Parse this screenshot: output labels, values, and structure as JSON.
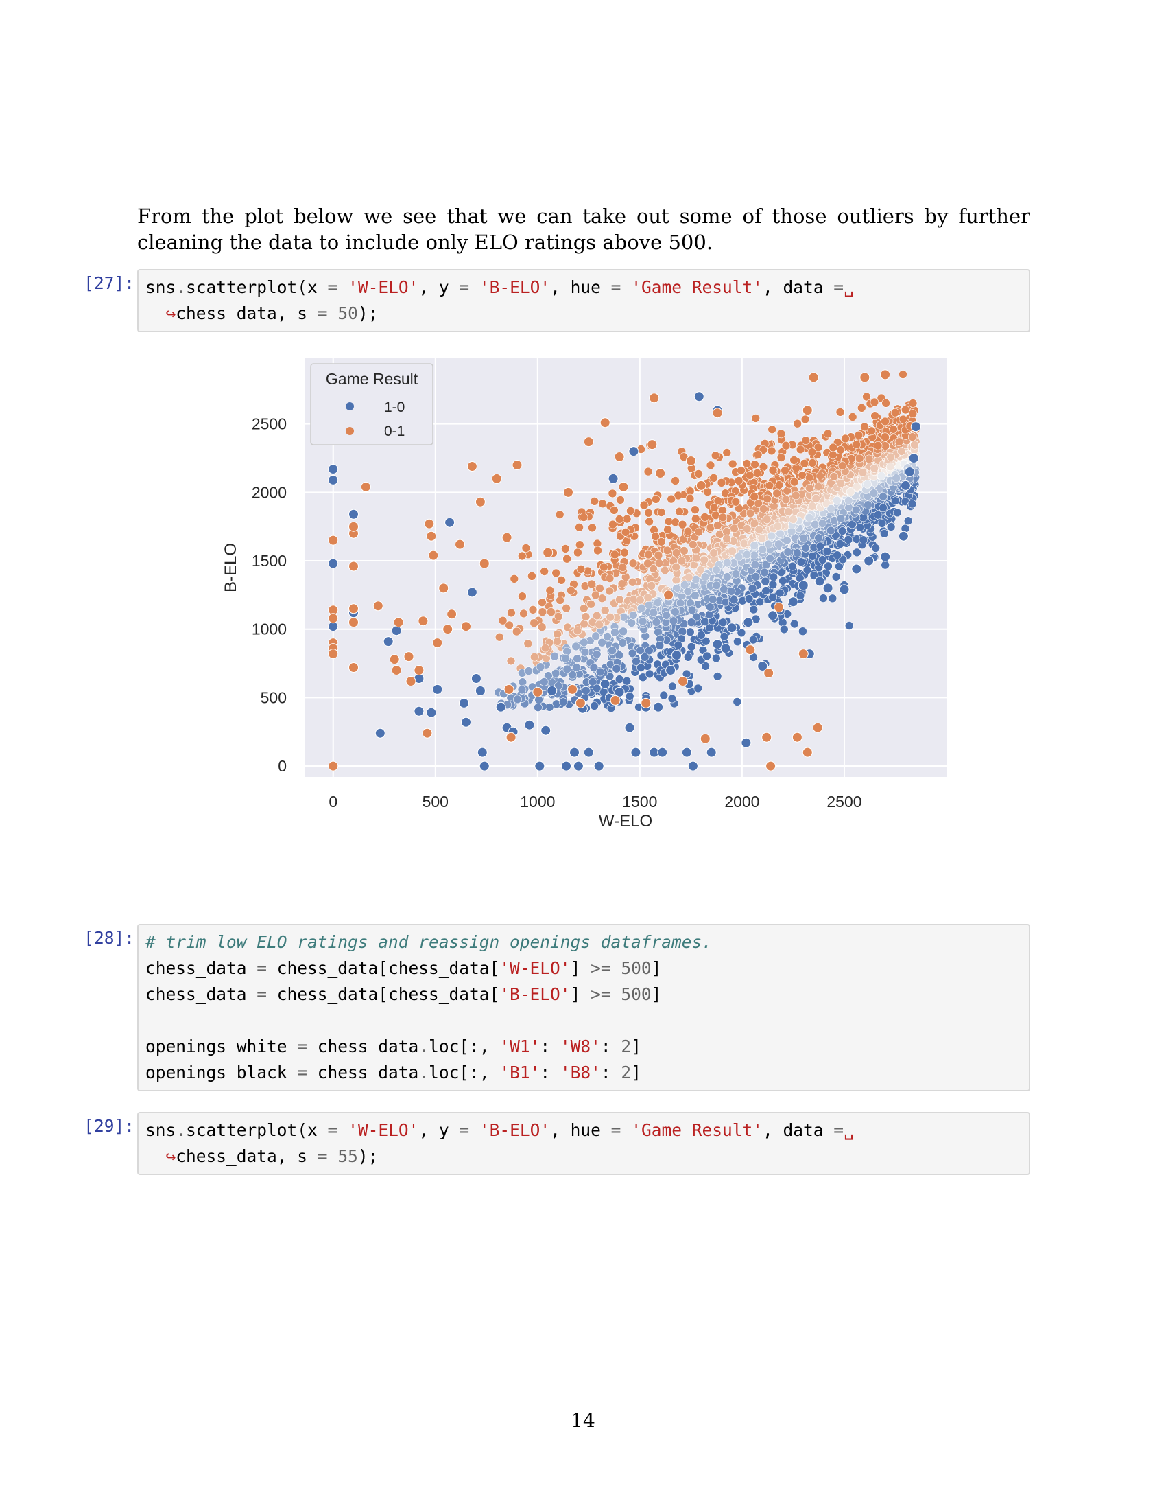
{
  "paragraph": "From the plot below we see that we can take out some of those outliers by further cleaning the data to include only ELO ratings above 500.",
  "cells": [
    {
      "prompt": "[27]:"
    },
    {
      "prompt": "[28]:"
    },
    {
      "prompt": "[29]:"
    }
  ],
  "code": {
    "c27_l1": {
      "t1": "sns",
      "t2": ".",
      "t3": "scatterplot(x ",
      "t4": "=",
      "t5": " ",
      "t6": "'W-ELO'",
      "t7": ", y ",
      "t8": "=",
      "t9": " ",
      "t10": "'B-ELO'",
      "t11": ", hue ",
      "t12": "=",
      "t13": " ",
      "t14": "'Game Result'",
      "t15": ", data ",
      "t16": "=",
      "t17": "␣"
    },
    "c27_l2": {
      "t1": "↪",
      "t2": "chess_data, s ",
      "t3": "=",
      "t4": " ",
      "t5": "50",
      "t6": ");"
    },
    "c28": {
      "comment": "# trim low ELO ratings and reassign openings dataframes.",
      "l2a": "chess_data ",
      "l2b": "=",
      "l2c": " chess_data[chess_data[",
      "l2d": "'W-ELO'",
      "l2e": "] ",
      "l2f": ">=",
      "l2g": " ",
      "l2h": "500",
      "l2i": "]",
      "l3a": "chess_data ",
      "l3b": "=",
      "l3c": " chess_data[chess_data[",
      "l3d": "'B-ELO'",
      "l3e": "] ",
      "l3f": ">=",
      "l3g": " ",
      "l3h": "500",
      "l3i": "]",
      "l5a": "openings_white ",
      "l5b": "=",
      "l5c": " chess_data",
      "l5d": ".",
      "l5e": "loc[:, ",
      "l5f": "'W1'",
      "l5g": ": ",
      "l5h": "'W8'",
      "l5i": ": ",
      "l5j": "2",
      "l5k": "]",
      "l6a": "openings_black ",
      "l6b": "=",
      "l6c": " chess_data",
      "l6d": ".",
      "l6e": "loc[:, ",
      "l6f": "'B1'",
      "l6g": ": ",
      "l6h": "'B8'",
      "l6i": ": ",
      "l6j": "2",
      "l6k": "]"
    },
    "c29_l1": {
      "t1": "sns",
      "t2": ".",
      "t3": "scatterplot(x ",
      "t4": "=",
      "t5": " ",
      "t6": "'W-ELO'",
      "t7": ", y ",
      "t8": "=",
      "t9": " ",
      "t10": "'B-ELO'",
      "t11": ", hue ",
      "t12": "=",
      "t13": " ",
      "t14": "'Game Result'",
      "t15": ", data ",
      "t16": "=",
      "t17": "␣"
    },
    "c29_l2": {
      "t1": "↪",
      "t2": "chess_data, s ",
      "t3": "=",
      "t4": " ",
      "t5": "55",
      "t6": ");"
    }
  },
  "chart_data": {
    "type": "scatter",
    "xlabel": "W-ELO",
    "ylabel": "B-ELO",
    "xlim": [
      -140,
      3000
    ],
    "ylim": [
      -80,
      2980
    ],
    "xticks": [
      0,
      500,
      1000,
      1500,
      2000,
      2500
    ],
    "yticks": [
      0,
      500,
      1000,
      1500,
      2000,
      2500
    ],
    "grid": true,
    "legend": {
      "title": "Game Result",
      "position": "top-left"
    },
    "series": [
      {
        "name": "1-0",
        "color": "#4c72b0",
        "points": [
          [
            0,
            2170
          ],
          [
            0,
            2090
          ],
          [
            0,
            1480
          ],
          [
            0,
            1020
          ],
          [
            100,
            1840
          ],
          [
            100,
            1120
          ],
          [
            230,
            240
          ],
          [
            270,
            910
          ],
          [
            310,
            990
          ],
          [
            420,
            400
          ],
          [
            420,
            640
          ],
          [
            480,
            390
          ],
          [
            510,
            560
          ],
          [
            570,
            1780
          ],
          [
            640,
            460
          ],
          [
            650,
            320
          ],
          [
            680,
            1270
          ],
          [
            700,
            640
          ],
          [
            720,
            550
          ],
          [
            730,
            100
          ],
          [
            740,
            0
          ],
          [
            820,
            430
          ],
          [
            850,
            280
          ],
          [
            880,
            250
          ],
          [
            960,
            300
          ],
          [
            1010,
            0
          ],
          [
            1040,
            260
          ],
          [
            1070,
            550
          ],
          [
            1140,
            0
          ],
          [
            1180,
            100
          ],
          [
            1200,
            0
          ],
          [
            1220,
            420
          ],
          [
            1250,
            100
          ],
          [
            1300,
            0
          ],
          [
            1330,
            600
          ],
          [
            1400,
            540
          ],
          [
            1450,
            280
          ],
          [
            1470,
            2300
          ],
          [
            1480,
            100
          ],
          [
            1530,
            430
          ],
          [
            1570,
            100
          ],
          [
            1590,
            430
          ],
          [
            1610,
            100
          ],
          [
            1650,
            700
          ],
          [
            1680,
            810
          ],
          [
            1730,
            100
          ],
          [
            1740,
            600
          ],
          [
            1760,
            0
          ],
          [
            1850,
            100
          ],
          [
            1880,
            890
          ],
          [
            1920,
            860
          ],
          [
            1950,
            1010
          ],
          [
            2020,
            170
          ],
          [
            2030,
            1050
          ],
          [
            2100,
            730
          ],
          [
            2150,
            1100
          ],
          [
            2250,
            1200
          ],
          [
            2300,
            1320
          ],
          [
            2330,
            820
          ],
          [
            2380,
            1350
          ],
          [
            2420,
            1300
          ],
          [
            2500,
            1290
          ],
          [
            2560,
            1440
          ],
          [
            2620,
            1500
          ],
          [
            2700,
            1530
          ],
          [
            2790,
            1680
          ],
          [
            2800,
            2050
          ],
          [
            2820,
            2150
          ],
          [
            2840,
            2250
          ],
          [
            2850,
            2480
          ],
          [
            1790,
            2700
          ],
          [
            1880,
            2600
          ],
          [
            1370,
            2100
          ]
        ]
      },
      {
        "name": "0-1",
        "color": "#dd8452",
        "points": [
          [
            0,
            0
          ],
          [
            0,
            1650
          ],
          [
            0,
            1140
          ],
          [
            0,
            1080
          ],
          [
            0,
            900
          ],
          [
            0,
            860
          ],
          [
            0,
            820
          ],
          [
            100,
            1700
          ],
          [
            100,
            1750
          ],
          [
            100,
            1150
          ],
          [
            100,
            1460
          ],
          [
            100,
            1050
          ],
          [
            100,
            720
          ],
          [
            160,
            2040
          ],
          [
            220,
            1170
          ],
          [
            300,
            780
          ],
          [
            310,
            700
          ],
          [
            320,
            1050
          ],
          [
            370,
            800
          ],
          [
            380,
            620
          ],
          [
            420,
            700
          ],
          [
            440,
            1060
          ],
          [
            460,
            240
          ],
          [
            470,
            1770
          ],
          [
            480,
            1680
          ],
          [
            490,
            1540
          ],
          [
            510,
            900
          ],
          [
            540,
            1300
          ],
          [
            560,
            1000
          ],
          [
            580,
            1110
          ],
          [
            620,
            1620
          ],
          [
            650,
            1020
          ],
          [
            680,
            2190
          ],
          [
            720,
            1930
          ],
          [
            740,
            1480
          ],
          [
            800,
            2100
          ],
          [
            850,
            1670
          ],
          [
            860,
            560
          ],
          [
            870,
            210
          ],
          [
            900,
            2200
          ],
          [
            1000,
            540
          ],
          [
            1050,
            1560
          ],
          [
            1150,
            2000
          ],
          [
            1170,
            560
          ],
          [
            1210,
            460
          ],
          [
            1250,
            2370
          ],
          [
            1330,
            2510
          ],
          [
            1380,
            480
          ],
          [
            1400,
            2260
          ],
          [
            1420,
            2040
          ],
          [
            1530,
            460
          ],
          [
            1560,
            2350
          ],
          [
            1570,
            2690
          ],
          [
            1600,
            2140
          ],
          [
            1640,
            1250
          ],
          [
            1710,
            620
          ],
          [
            1750,
            2230
          ],
          [
            1800,
            2050
          ],
          [
            1820,
            200
          ],
          [
            1880,
            2580
          ],
          [
            2040,
            850
          ],
          [
            2130,
            680
          ],
          [
            2120,
            210
          ],
          [
            2140,
            0
          ],
          [
            2180,
            1160
          ],
          [
            2270,
            210
          ],
          [
            2350,
            2840
          ],
          [
            2370,
            280
          ],
          [
            2320,
            2600
          ],
          [
            2600,
            2840
          ],
          [
            2700,
            2860
          ],
          [
            2300,
            820
          ],
          [
            2320,
            100
          ]
        ]
      }
    ]
  },
  "page_number": "14"
}
